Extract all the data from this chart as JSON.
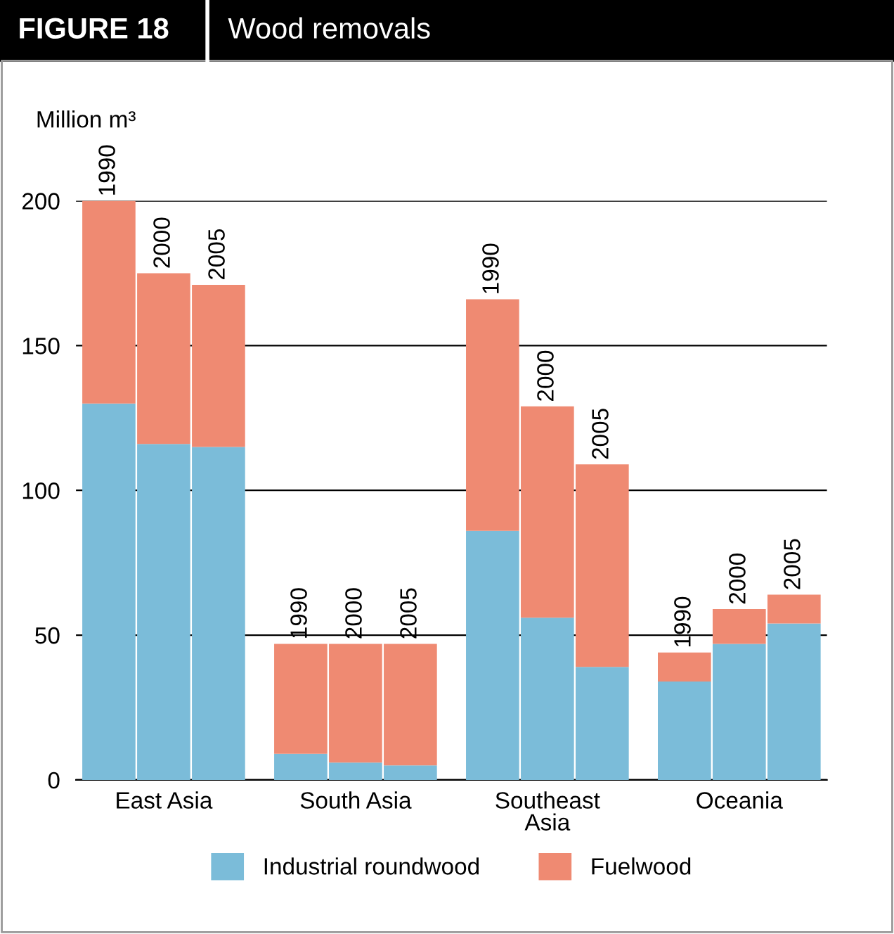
{
  "chart_data": {
    "type": "bar",
    "stacked": true,
    "title": "FIGURE 18",
    "subtitle": "Wood removals",
    "ylabel": "Million m³",
    "categories": [
      "1990",
      "2000",
      "2005",
      "1990",
      "2000",
      "2005",
      "1990",
      "2000",
      "2005",
      "1990",
      "2000",
      "2005"
    ],
    "annotations": [
      "East Asia",
      "South Asia",
      "Southeast\nAsia",
      "Oceania"
    ],
    "series": [
      {
        "name": "Industrial roundwood",
        "color": "#7bbcd9",
        "values": [
          130,
          116,
          115,
          9,
          6,
          5,
          86,
          56,
          39,
          34,
          47,
          54
        ]
      },
      {
        "name": "Fuelwood",
        "color": "#ef8a72",
        "values": [
          70,
          59,
          56,
          38,
          41,
          42,
          80,
          73,
          70,
          10,
          12,
          10
        ]
      }
    ],
    "ylim": [
      0,
      200
    ],
    "yticks": [
      0,
      50,
      100,
      150,
      200
    ],
    "grid": "y",
    "legend": "bottom"
  }
}
